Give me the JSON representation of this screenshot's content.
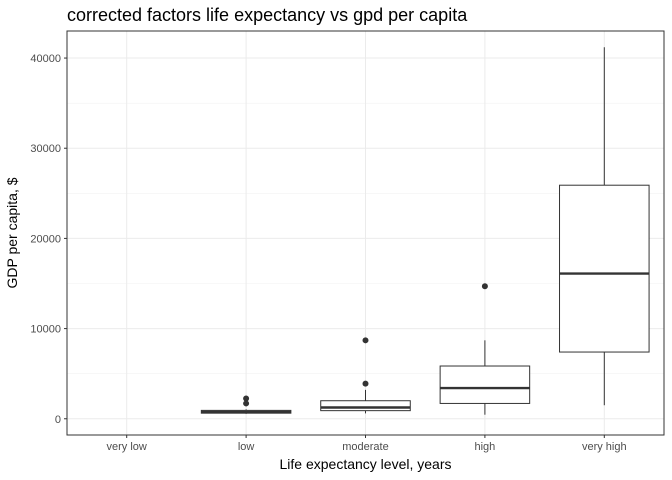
{
  "chart_data": {
    "type": "box",
    "title": "corrected factors life expectancy vs gpd per capita",
    "xlabel": "Life expectancy level, years",
    "ylabel": "GDP per capita, $",
    "categories": [
      "very low",
      "low",
      "moderate",
      "high",
      "very high"
    ],
    "ylim": [
      -1800,
      43000
    ],
    "yticks": [
      0,
      10000,
      20000,
      30000,
      40000
    ],
    "grid": true,
    "legend": "none",
    "boxes": [
      {
        "category": "very low",
        "min": null,
        "q1": null,
        "median": null,
        "q3": null,
        "max": null,
        "outliers": []
      },
      {
        "category": "low",
        "min": 550,
        "q1": 620,
        "median": 750,
        "q3": 930,
        "max": 1050,
        "outliers": [
          1700,
          2250
        ]
      },
      {
        "category": "moderate",
        "min": 600,
        "q1": 900,
        "median": 1250,
        "q3": 2000,
        "max": 3200,
        "outliers": [
          3900,
          8700
        ]
      },
      {
        "category": "high",
        "min": 450,
        "q1": 1700,
        "median": 3400,
        "q3": 5850,
        "max": 8700,
        "outliers": [
          14700
        ]
      },
      {
        "category": "very high",
        "min": 1500,
        "q1": 7400,
        "median": 16100,
        "q3": 25900,
        "max": 41200,
        "outliers": []
      }
    ]
  }
}
